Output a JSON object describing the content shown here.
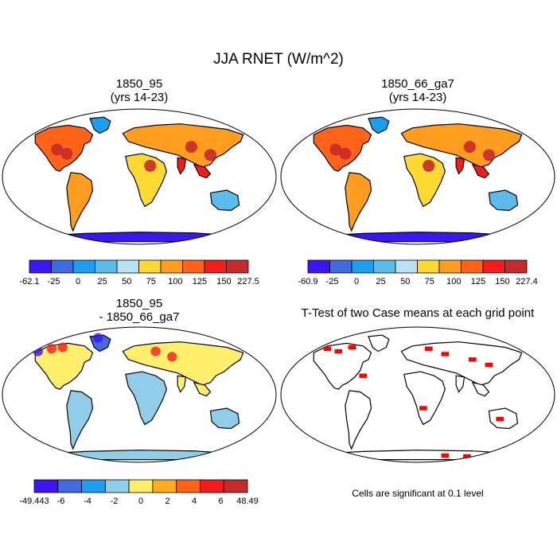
{
  "figure": {
    "title": "JJA RNET (W/m^2)"
  },
  "panels": [
    {
      "title_line1": "1850_95",
      "title_line2": "(yrs 14-23)"
    },
    {
      "title_line1": "1850_66_ga7",
      "title_line2": "(yrs 14-23)"
    },
    {
      "title_line1": "1850_95",
      "title_line2": "- 1850_66_ga7"
    },
    {
      "title_line1": "T-Test of two Case means at each grid point",
      "title_line2": ""
    }
  ],
  "ttest_note": "Cells are significant at 0.1 level",
  "chart_data": [
    {
      "type": "heatmap",
      "title": "1850_95 (yrs 14-23)",
      "variable": "JJA RNET",
      "units": "W/m^2",
      "projection": "Robinson",
      "colorbar": {
        "labels": [
          "-62.1",
          "-25",
          "0",
          "25",
          "50",
          "75",
          "100",
          "125",
          "150",
          "227.5"
        ],
        "colors": [
          "#3d14f2",
          "#3f6ae0",
          "#1c9ff0",
          "#5bbbeb",
          "#b8e2f4",
          "#ffd933",
          "#ff9d1f",
          "#ff6418",
          "#f51c1c",
          "#c62a2a"
        ]
      }
    },
    {
      "type": "heatmap",
      "title": "1850_66_ga7 (yrs 14-23)",
      "variable": "JJA RNET",
      "units": "W/m^2",
      "projection": "Robinson",
      "colorbar": {
        "labels": [
          "-60.9",
          "-25",
          "0",
          "25",
          "50",
          "75",
          "100",
          "125",
          "150",
          "227.4"
        ],
        "colors": [
          "#3d14f2",
          "#3f6ae0",
          "#1c9ff0",
          "#5bbbeb",
          "#b8e2f4",
          "#ffd933",
          "#ff9d1f",
          "#ff6418",
          "#f51c1c",
          "#c62a2a"
        ]
      }
    },
    {
      "type": "heatmap",
      "title": "1850_95 - 1850_66_ga7",
      "variable": "JJA RNET difference",
      "units": "W/m^2",
      "projection": "Robinson",
      "colorbar": {
        "labels": [
          "-49.443",
          "-6",
          "-4",
          "-2",
          "0",
          "2",
          "4",
          "6",
          "48.49"
        ],
        "colors": [
          "#3d14f2",
          "#3f6ae0",
          "#1c9ff0",
          "#8fcde9",
          "#ffef6a",
          "#ffad1e",
          "#ff6418",
          "#f51c1c",
          "#c62a2a"
        ]
      }
    },
    {
      "type": "heatmap",
      "title": "T-Test of two Case means at each grid point",
      "projection": "Robinson",
      "significance_level": 0.1,
      "significant_color": "#ff0000"
    }
  ]
}
